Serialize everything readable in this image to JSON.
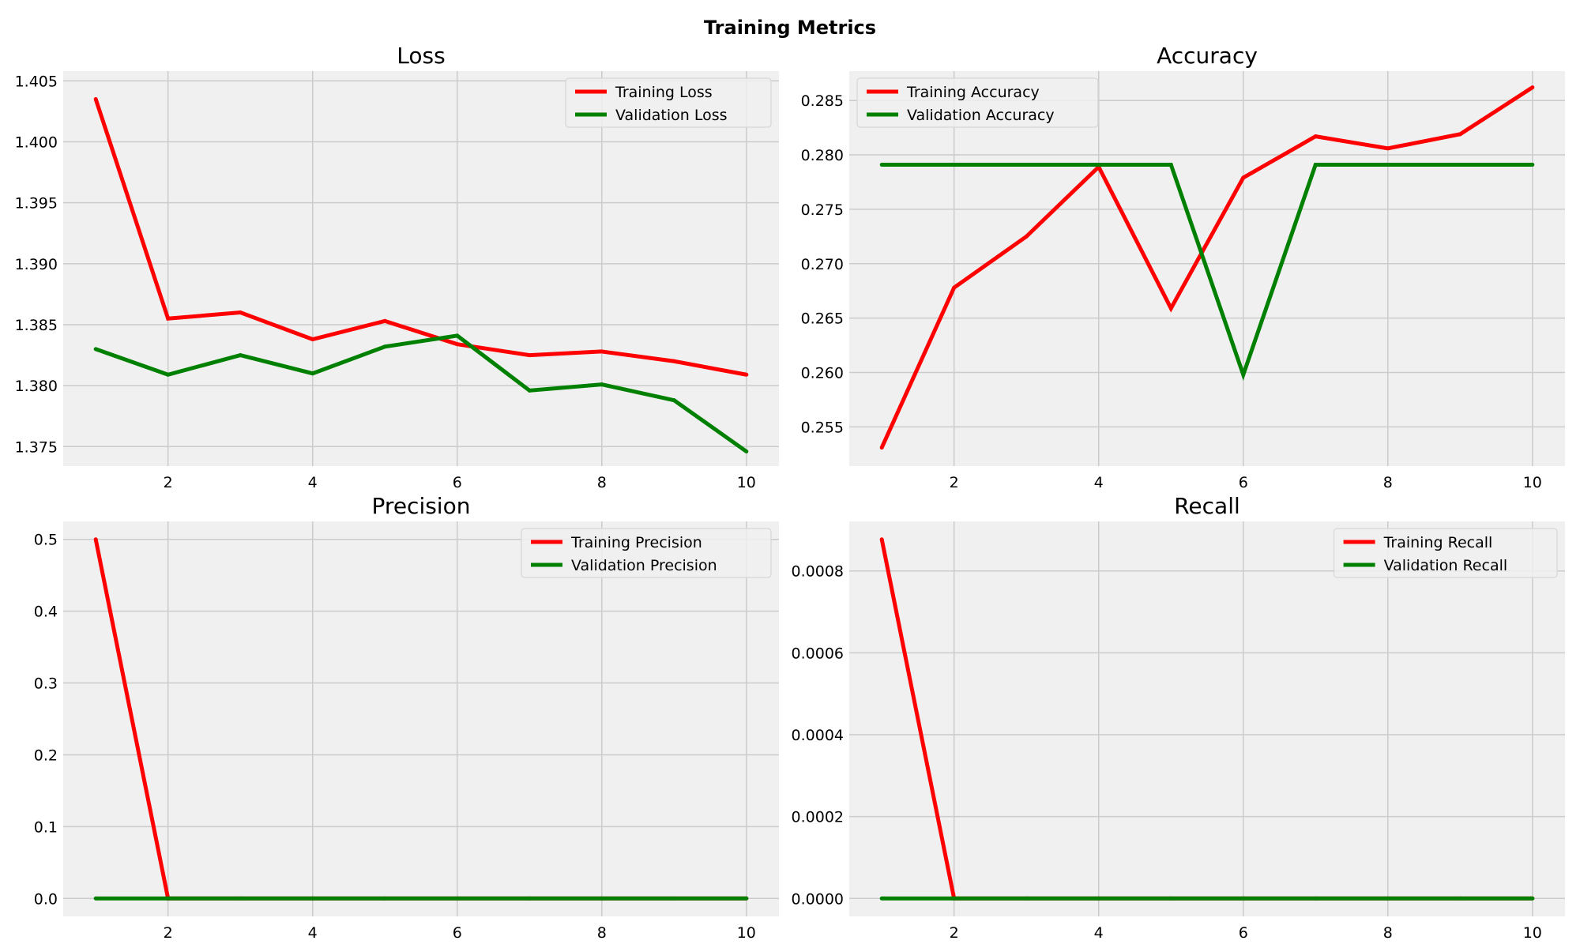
{
  "figure": {
    "title": "Training Metrics"
  },
  "chart_data": [
    {
      "type": "line",
      "title": "Loss",
      "xlabel": "",
      "ylabel": "",
      "x": [
        1,
        2,
        3,
        4,
        5,
        6,
        7,
        8,
        9,
        10
      ],
      "xlim": [
        0.55,
        10.45
      ],
      "ylim": [
        1.3734,
        1.4058
      ],
      "xticks": [
        2,
        4,
        6,
        8,
        10
      ],
      "yticks": [
        1.375,
        1.38,
        1.385,
        1.39,
        1.395,
        1.4,
        1.405
      ],
      "ytick_labels": [
        "1.375",
        "1.380",
        "1.385",
        "1.390",
        "1.395",
        "1.400",
        "1.405"
      ],
      "legend_loc": "upper right",
      "grid": true,
      "series": [
        {
          "name": "Training Loss",
          "color": "#ff0000",
          "values": [
            1.4035,
            1.3855,
            1.386,
            1.3838,
            1.3853,
            1.3834,
            1.3825,
            1.3828,
            1.382,
            1.3809
          ]
        },
        {
          "name": "Validation Loss",
          "color": "#008000",
          "values": [
            1.383,
            1.3809,
            1.3825,
            1.381,
            1.3832,
            1.3841,
            1.3796,
            1.3801,
            1.3788,
            1.3746
          ]
        }
      ]
    },
    {
      "type": "line",
      "title": "Accuracy",
      "xlabel": "",
      "ylabel": "",
      "x": [
        1,
        2,
        3,
        4,
        5,
        6,
        7,
        8,
        9,
        10
      ],
      "xlim": [
        0.55,
        10.45
      ],
      "ylim": [
        0.2514,
        0.2877
      ],
      "xticks": [
        2,
        4,
        6,
        8,
        10
      ],
      "yticks": [
        0.255,
        0.26,
        0.265,
        0.27,
        0.275,
        0.28,
        0.285
      ],
      "ytick_labels": [
        "0.255",
        "0.260",
        "0.265",
        "0.270",
        "0.275",
        "0.280",
        "0.285"
      ],
      "legend_loc": "upper left",
      "grid": true,
      "series": [
        {
          "name": "Training Accuracy",
          "color": "#ff0000",
          "values": [
            0.2531,
            0.2678,
            0.2725,
            0.2789,
            0.2659,
            0.2779,
            0.2817,
            0.2806,
            0.2819,
            0.2862
          ]
        },
        {
          "name": "Validation Accuracy",
          "color": "#008000",
          "values": [
            0.2791,
            0.2791,
            0.2791,
            0.2791,
            0.2791,
            0.2598,
            0.2791,
            0.2791,
            0.2791,
            0.2791
          ]
        }
      ]
    },
    {
      "type": "line",
      "title": "Precision",
      "xlabel": "",
      "ylabel": "",
      "x": [
        1,
        2,
        3,
        4,
        5,
        6,
        7,
        8,
        9,
        10
      ],
      "xlim": [
        0.55,
        10.45
      ],
      "ylim": [
        -0.025,
        0.525
      ],
      "xticks": [
        2,
        4,
        6,
        8,
        10
      ],
      "yticks": [
        0.0,
        0.1,
        0.2,
        0.3,
        0.4,
        0.5
      ],
      "ytick_labels": [
        "0.0",
        "0.1",
        "0.2",
        "0.3",
        "0.4",
        "0.5"
      ],
      "legend_loc": "upper right",
      "grid": true,
      "series": [
        {
          "name": "Training Precision",
          "color": "#ff0000",
          "values": [
            0.5,
            0,
            0,
            0,
            0,
            0,
            0,
            0,
            0,
            0
          ]
        },
        {
          "name": "Validation Precision",
          "color": "#008000",
          "values": [
            0,
            0,
            0,
            0,
            0,
            0,
            0,
            0,
            0,
            0
          ]
        }
      ]
    },
    {
      "type": "line",
      "title": "Recall",
      "xlabel": "",
      "ylabel": "",
      "x": [
        1,
        2,
        3,
        4,
        5,
        6,
        7,
        8,
        9,
        10
      ],
      "xlim": [
        0.55,
        10.45
      ],
      "ylim": [
        -4.39e-05,
        0.000921
      ],
      "xticks": [
        2,
        4,
        6,
        8,
        10
      ],
      "yticks": [
        0,
        0.0002,
        0.0004,
        0.0006,
        0.0008
      ],
      "ytick_labels": [
        "0.0000",
        "0.0002",
        "0.0004",
        "0.0006",
        "0.0008"
      ],
      "legend_loc": "upper right",
      "grid": true,
      "series": [
        {
          "name": "Training Recall",
          "color": "#ff0000",
          "values": [
            0.000877,
            0,
            0,
            0,
            0,
            0,
            0,
            0,
            0,
            0
          ]
        },
        {
          "name": "Validation Recall",
          "color": "#008000",
          "values": [
            0,
            0,
            0,
            0,
            0,
            0,
            0,
            0,
            0,
            0
          ]
        }
      ]
    }
  ]
}
